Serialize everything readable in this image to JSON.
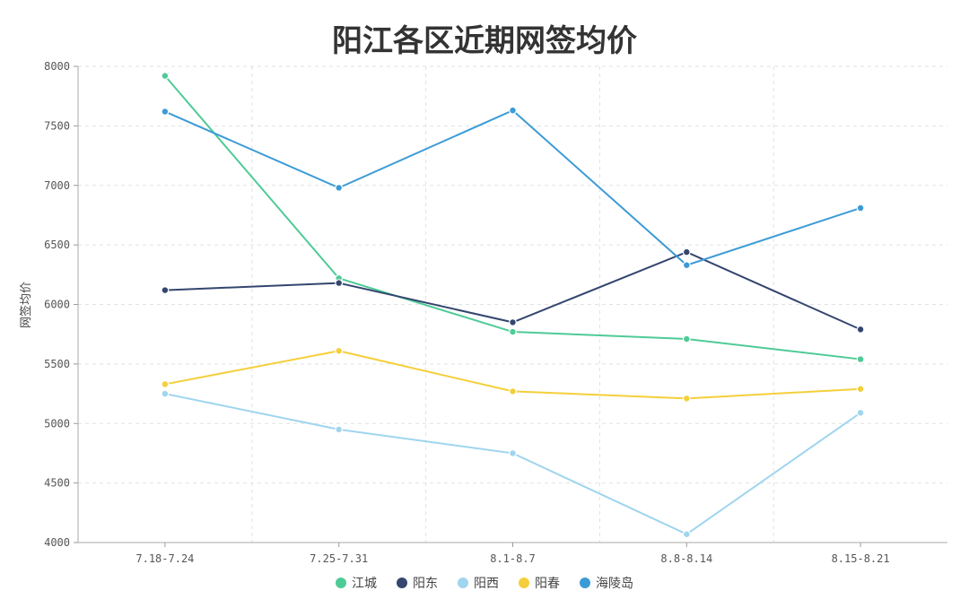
{
  "chart_data": {
    "type": "line",
    "title": "阳江各区近期网签均价",
    "ylabel": "网签均价",
    "xlabel": "",
    "ylim": [
      4000,
      8000
    ],
    "yticks": [
      4000,
      4500,
      5000,
      5500,
      6000,
      6500,
      7000,
      7500,
      8000
    ],
    "grid": true,
    "legend_position": "bottom-center",
    "categories": [
      "7.18-7.24",
      "7.25-7.31",
      "8.1-8.7",
      "8.8-8.14",
      "8.15-8.21"
    ],
    "series": [
      {
        "name": "江城",
        "color": "#4ecb96",
        "values": [
          7920,
          6220,
          5770,
          5710,
          5540
        ]
      },
      {
        "name": "阳东",
        "color": "#34466f",
        "values": [
          6120,
          6180,
          5850,
          6440,
          5790
        ]
      },
      {
        "name": "阳西",
        "color": "#9fd5ee",
        "values": [
          5250,
          4950,
          4750,
          4070,
          5090
        ]
      },
      {
        "name": "阳春",
        "color": "#f5cf3a",
        "values": [
          5330,
          5610,
          5270,
          5210,
          5290
        ]
      },
      {
        "name": "海陵岛",
        "color": "#3b9bd6",
        "values": [
          7620,
          6980,
          7630,
          6330,
          6810
        ]
      }
    ]
  }
}
